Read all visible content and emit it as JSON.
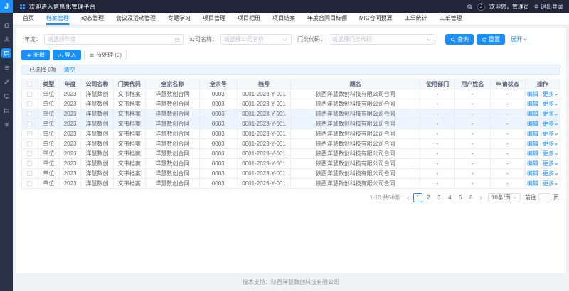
{
  "topbar": {
    "logo": "J",
    "title": "欢迎进入信息化管理平台",
    "avatar": "J",
    "welcome": "欢迎您，管理员",
    "logout": "退出登录"
  },
  "sidebar": {
    "items": [
      {
        "name": "home",
        "icon": "home",
        "active": false
      },
      {
        "name": "user",
        "icon": "user",
        "active": false
      },
      {
        "name": "message",
        "icon": "chat",
        "active": true
      },
      {
        "name": "list",
        "icon": "list",
        "active": false
      },
      {
        "name": "edit",
        "icon": "edit",
        "active": false
      },
      {
        "name": "monitor",
        "icon": "monitor",
        "active": false
      },
      {
        "name": "project",
        "icon": "folder",
        "active": false
      },
      {
        "name": "settings",
        "icon": "gear",
        "active": false
      }
    ]
  },
  "tabs": [
    {
      "label": "首页",
      "active": false
    },
    {
      "label": "档案管理",
      "active": true
    },
    {
      "label": "动态管理",
      "active": false
    },
    {
      "label": "会议及活动管理",
      "active": false
    },
    {
      "label": "专题学习",
      "active": false
    },
    {
      "label": "项目管理",
      "active": false
    },
    {
      "label": "项目相册",
      "active": false
    },
    {
      "label": "项目结案",
      "active": false
    },
    {
      "label": "年度合同目标额",
      "active": false
    },
    {
      "label": "MIC合同预算",
      "active": false
    },
    {
      "label": "工单统计",
      "active": false
    },
    {
      "label": "工单管理",
      "active": false
    }
  ],
  "filters": {
    "year_label": "年度：",
    "year_placeholder": "请选择年度",
    "company_label": "公司名称：",
    "company_placeholder": "请选择公司名称",
    "category_label": "门类代码：",
    "category_placeholder": "请选择门类代码",
    "search_btn": "查询",
    "reset_btn": "重置",
    "expand": "展开"
  },
  "actions": {
    "add": "新增",
    "import": "导入",
    "pending": "待处理 (0)"
  },
  "selection_bar": {
    "text": "已选择 0项",
    "clear": "清空"
  },
  "table": {
    "columns": [
      {
        "key": "type",
        "label": "类型"
      },
      {
        "key": "year",
        "label": "年度"
      },
      {
        "key": "company",
        "label": "公司名称"
      },
      {
        "key": "category",
        "label": "门类代码"
      },
      {
        "key": "fonds_name",
        "label": "全宗名称"
      },
      {
        "key": "fonds_no",
        "label": "全宗号"
      },
      {
        "key": "file_no",
        "label": "档号"
      },
      {
        "key": "title",
        "label": "题名"
      },
      {
        "key": "dept",
        "label": "使用部门"
      },
      {
        "key": "user",
        "label": "用户姓名"
      },
      {
        "key": "status",
        "label": "申请状态"
      },
      {
        "key": "actions",
        "label": "操作"
      }
    ],
    "row_actions": {
      "edit": "编辑",
      "more": "更多"
    },
    "rows": [
      {
        "type": "单位",
        "year": "2023",
        "company": "洋慧数创",
        "category": "文书档案",
        "fonds_name": "洋慧数创合同",
        "fonds_no": "0003",
        "file_no": "0001-2023-Y-001",
        "title": "陕西洋慧数创科技有限公司合同",
        "dept": "-",
        "user": "-",
        "status": "-",
        "highlight": false
      },
      {
        "type": "单位",
        "year": "2023",
        "company": "洋慧数创",
        "category": "文书档案",
        "fonds_name": "洋慧数创合同",
        "fonds_no": "0003",
        "file_no": "0001-2023-Y-001",
        "title": "陕西洋慧数创科技有限公司合同",
        "dept": "-",
        "user": "-",
        "status": "-",
        "highlight": false
      },
      {
        "type": "单位",
        "year": "2023",
        "company": "洋慧数创",
        "category": "文书档案",
        "fonds_name": "洋慧数创合同",
        "fonds_no": "0003",
        "file_no": "0001-2023-Y-001",
        "title": "陕西洋慧数创科技有限公司合同",
        "dept": "-",
        "user": "-",
        "status": "-",
        "highlight": true
      },
      {
        "type": "单位",
        "year": "2023",
        "company": "洋慧数创",
        "category": "文书档案",
        "fonds_name": "洋慧数创合同",
        "fonds_no": "0003",
        "file_no": "0001-2023-Y-001",
        "title": "陕西洋慧数创科技有限公司合同",
        "dept": "-",
        "user": "-",
        "status": "-",
        "highlight": true
      },
      {
        "type": "单位",
        "year": "2023",
        "company": "洋慧数创",
        "category": "文书档案",
        "fonds_name": "洋慧数创合同",
        "fonds_no": "0003",
        "file_no": "0001-2023-Y-001",
        "title": "陕西洋慧数创科技有限公司合同",
        "dept": "-",
        "user": "-",
        "status": "-",
        "highlight": false
      },
      {
        "type": "单位",
        "year": "2023",
        "company": "洋慧数创",
        "category": "文书档案",
        "fonds_name": "洋慧数创合同",
        "fonds_no": "0003",
        "file_no": "0001-2023-Y-001",
        "title": "陕西洋慧数创科技有限公司合同",
        "dept": "-",
        "user": "-",
        "status": "-",
        "highlight": false
      },
      {
        "type": "单位",
        "year": "2023",
        "company": "洋慧数创",
        "category": "文书档案",
        "fonds_name": "洋慧数创合同",
        "fonds_no": "0003",
        "file_no": "0001-2023-Y-001",
        "title": "陕西洋慧数创科技有限公司合同",
        "dept": "-",
        "user": "-",
        "status": "-",
        "highlight": false
      },
      {
        "type": "单位",
        "year": "2023",
        "company": "洋慧数创",
        "category": "文书档案",
        "fonds_name": "洋慧数创合同",
        "fonds_no": "0003",
        "file_no": "0001-2023-Y-001",
        "title": "陕西洋慧数创科技有限公司合同",
        "dept": "-",
        "user": "-",
        "status": "-",
        "highlight": false
      },
      {
        "type": "单位",
        "year": "2023",
        "company": "洋慧数创",
        "category": "文书档案",
        "fonds_name": "洋慧数创合同",
        "fonds_no": "0003",
        "file_no": "0001-2023-Y-001",
        "title": "陕西洋慧数创科技有限公司合同",
        "dept": "-",
        "user": "-",
        "status": "-",
        "highlight": false
      },
      {
        "type": "单位",
        "year": "2023",
        "company": "洋慧数创",
        "category": "文书档案",
        "fonds_name": "洋慧数创合同",
        "fonds_no": "0003",
        "file_no": "0001-2023-Y-001",
        "title": "陕西洋慧数创科技有限公司合同",
        "dept": "-",
        "user": "-",
        "status": "-",
        "highlight": false
      }
    ]
  },
  "pagination": {
    "total": "1-10 共58条",
    "pages": [
      "1",
      "2",
      "3",
      "4",
      "5",
      "6"
    ],
    "active_page": "1",
    "page_size": "10条/页",
    "jump_label": "前往",
    "jump_suffix": "页"
  },
  "footer": {
    "text": "技术支持：陕西洋慧数创科技有限公司"
  },
  "colors": {
    "primary": "#1890ff",
    "header_bg": "#202637",
    "sidebar_bg": "#2a3247",
    "highlight_row": "#ecf5ff"
  }
}
